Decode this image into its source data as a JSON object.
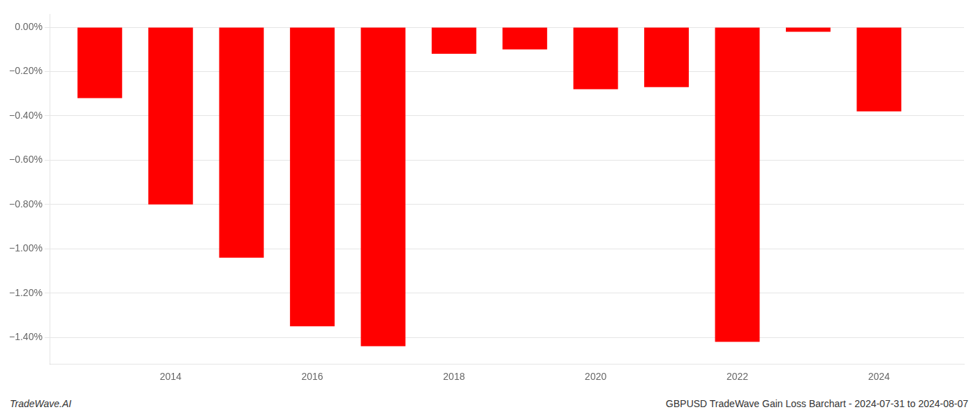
{
  "chart_data": {
    "type": "bar",
    "x": [
      2013,
      2014,
      2015,
      2016,
      2017,
      2018,
      2019,
      2020,
      2021,
      2022,
      2023,
      2024
    ],
    "values": [
      -0.32,
      -0.8,
      -1.04,
      -1.35,
      -1.44,
      -0.12,
      -0.1,
      -0.28,
      -0.27,
      -1.42,
      -0.02,
      -0.38
    ],
    "color": "#ff0000",
    "xlim": [
      2012.3,
      2025.2
    ],
    "xticks": [
      2014,
      2016,
      2018,
      2020,
      2022,
      2024
    ],
    "ylim": [
      -1.52,
      0.06
    ],
    "yticks": [
      {
        "value": 0.0,
        "label": "0.00%"
      },
      {
        "value": -0.2,
        "label": "−0.20%"
      },
      {
        "value": -0.4,
        "label": "−0.40%"
      },
      {
        "value": -0.6,
        "label": "−0.60%"
      },
      {
        "value": -0.8,
        "label": "−0.80%"
      },
      {
        "value": -1.0,
        "label": "−1.00%"
      },
      {
        "value": -1.2,
        "label": "−1.20%"
      },
      {
        "value": -1.4,
        "label": "−1.40%"
      }
    ],
    "grid": true,
    "annotations": [
      "TradeWave.AI",
      "GBPUSD TradeWave Gain Loss Barchart - 2024-07-31 to 2024-08-07"
    ]
  }
}
